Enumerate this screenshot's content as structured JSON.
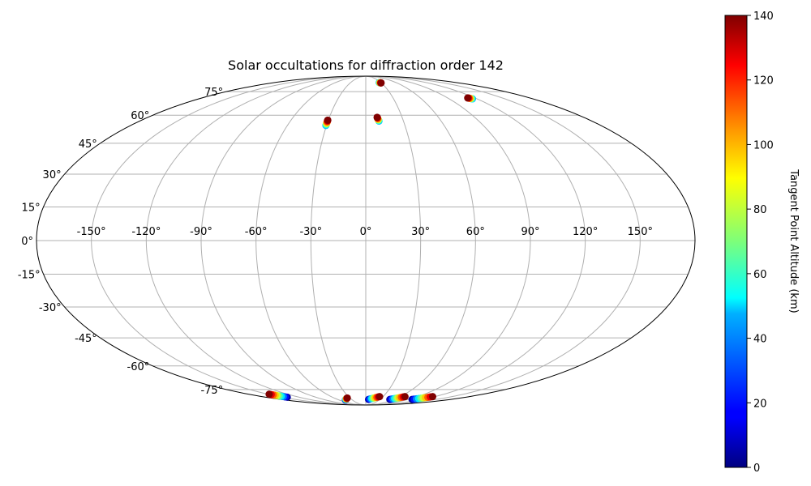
{
  "chart_data": {
    "type": "scatter",
    "projection": "mollweide",
    "title": "Solar occultations for diffraction order 142",
    "lon_ticks": [
      "-150°",
      "-120°",
      "-90°",
      "-60°",
      "-30°",
      "0°",
      "30°",
      "60°",
      "90°",
      "120°",
      "150°"
    ],
    "lon_tick_values": [
      -150,
      -120,
      -90,
      -60,
      -30,
      0,
      30,
      60,
      90,
      120,
      150
    ],
    "lat_ticks": [
      "-75°",
      "-60°",
      "-45°",
      "-30°",
      "-15°",
      "0°",
      "15°",
      "30°",
      "45°",
      "60°",
      "75°"
    ],
    "lat_tick_values": [
      -75,
      -60,
      -45,
      -30,
      -15,
      0,
      15,
      30,
      45,
      60,
      75
    ],
    "grid": true,
    "colormap": "jet",
    "colorbar": {
      "label": "Tangent Point Altitude (km)",
      "range": [
        0,
        140
      ],
      "ticks": [
        "0",
        "20",
        "40",
        "60",
        "80",
        "100",
        "120",
        "140"
      ],
      "tick_values": [
        0,
        20,
        40,
        60,
        80,
        100,
        120,
        140
      ]
    },
    "occultations": [
      {
        "lon_start": 26.5,
        "lat_start": 82.2,
        "lon_end": 29.5,
        "lat_end": 81.9,
        "alt_start": 40,
        "alt_end": 140
      },
      {
        "lon_start": 115.0,
        "lat_start": 70.0,
        "lon_end": 112.0,
        "lat_end": 70.6,
        "alt_start": 40,
        "alt_end": 140
      },
      {
        "lon_start": -30.5,
        "lat_start": 54.3,
        "lon_end": -30.5,
        "lat_end": 57.2,
        "alt_start": 40,
        "alt_end": 140
      },
      {
        "lon_start": 10.5,
        "lat_start": 56.7,
        "lon_end": 9.4,
        "lat_end": 58.8,
        "alt_start": 40,
        "alt_end": 140
      },
      {
        "lon_start": -141.0,
        "lat_start": -81.0,
        "lon_end": -148.0,
        "lat_end": -78.5,
        "alt_start": 5,
        "alt_end": 140
      },
      {
        "lon_start": -45.0,
        "lat_start": -83.5,
        "lon_end": -35.0,
        "lat_end": -81.7,
        "alt_start": 5,
        "alt_end": 140
      },
      {
        "lon_start": 6.0,
        "lat_start": -83.0,
        "lon_end": 24.0,
        "lat_end": -80.5,
        "alt_start": 5,
        "alt_end": 140
      },
      {
        "lon_start": 51.0,
        "lat_start": -83.0,
        "lon_end": 68.0,
        "lat_end": -80.5,
        "alt_start": 5,
        "alt_end": 140
      },
      {
        "lon_start": 98.0,
        "lat_start": -83.0,
        "lon_end": 116.0,
        "lat_end": -80.5,
        "alt_start": 5,
        "alt_end": 140
      }
    ],
    "points_per_occultation": 10
  }
}
